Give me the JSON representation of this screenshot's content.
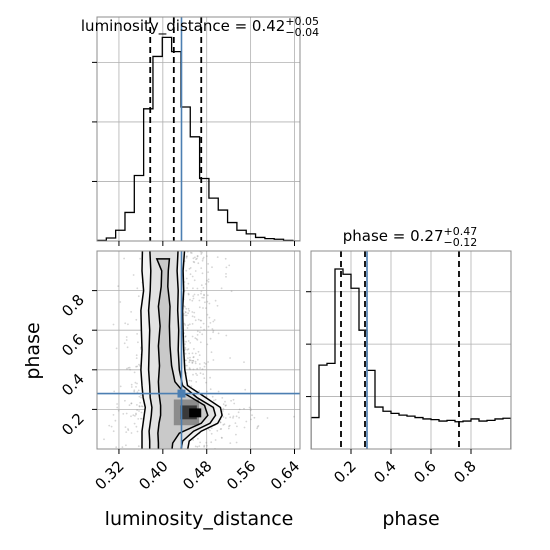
{
  "chart_data": {
    "type": "corner",
    "parameters": [
      "luminosity_distance",
      "phase"
    ],
    "colors": {
      "truth": "#4c7fb2",
      "hist": "#000000",
      "grid": "#b0b0b0",
      "scatter": "#8a8a8a"
    },
    "diagonal": [
      {
        "name": "luminosity_distance",
        "title_prefix": "luminosity_distance = ",
        "title_value": "0.42",
        "title_upper": "+0.05",
        "title_lower": "−0.04",
        "range": [
          0.28,
          0.65
        ],
        "bin_edges": [
          0.28,
          0.297,
          0.314,
          0.331,
          0.348,
          0.365,
          0.382,
          0.399,
          0.416,
          0.433,
          0.45,
          0.467,
          0.484,
          0.501,
          0.518,
          0.535,
          0.552,
          0.569,
          0.586,
          0.603,
          0.62,
          0.637,
          0.654
        ],
        "counts": [
          1,
          5,
          18,
          48,
          110,
          222,
          310,
          342,
          318,
          225,
          175,
          105,
          72,
          52,
          31,
          18,
          12,
          6,
          4,
          3,
          1,
          0
        ],
        "quantiles": [
          0.377,
          0.42,
          0.47
        ],
        "truth": 0.434
      },
      {
        "name": "phase",
        "title_prefix": "phase = ",
        "title_value": "0.27",
        "title_upper": "+0.47",
        "title_lower": "−0.12",
        "range": [
          0.0,
          1.0
        ],
        "bin_edges": [
          0.0,
          0.04,
          0.08,
          0.12,
          0.16,
          0.2,
          0.24,
          0.28,
          0.32,
          0.36,
          0.4,
          0.44,
          0.48,
          0.52,
          0.56,
          0.6,
          0.64,
          0.68,
          0.72,
          0.76,
          0.8,
          0.84,
          0.88,
          0.92,
          0.96,
          1.0
        ],
        "counts": [
          90,
          240,
          245,
          515,
          500,
          460,
          340,
          225,
          120,
          108,
          102,
          97,
          94,
          90,
          86,
          84,
          80,
          82,
          78,
          80,
          86,
          80,
          82,
          86,
          88
        ],
        "quantiles": [
          0.15,
          0.27,
          0.74
        ],
        "truth": 0.28
      }
    ],
    "joint": {
      "x": "luminosity_distance",
      "y": "phase",
      "xlim": [
        0.28,
        0.65
      ],
      "ylim": [
        0.0,
        1.0
      ],
      "truth": [
        0.434,
        0.28
      ],
      "contour_levels": [
        "39.3%",
        "86.5%",
        "98.9%"
      ]
    },
    "x_ticks_lum": [
      "0.32",
      "0.40",
      "0.48",
      "0.56",
      "0.64"
    ],
    "x_ticks_phase": [
      "0.2",
      "0.4",
      "0.6",
      "0.8"
    ],
    "y_ticks_phase": [
      "0.2",
      "0.4",
      "0.6",
      "0.8"
    ],
    "xlabel_left": "luminosity_distance",
    "xlabel_right": "phase",
    "ylabel_left": "phase",
    "grid": true
  }
}
